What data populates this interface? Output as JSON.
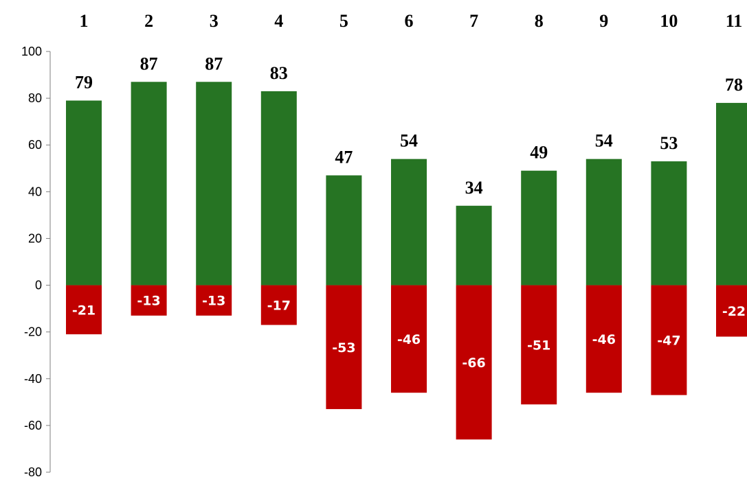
{
  "chart_data": {
    "type": "bar",
    "stacked": true,
    "categories": [
      "1",
      "2",
      "3",
      "4",
      "5",
      "6",
      "7",
      "8",
      "9",
      "10",
      "11"
    ],
    "series": [
      {
        "color": "#267423",
        "values": [
          79,
          87,
          87,
          83,
          47,
          54,
          34,
          49,
          54,
          53,
          78
        ]
      },
      {
        "color": "#c00000",
        "values": [
          -21,
          -13,
          -13,
          -17,
          -53,
          -46,
          -66,
          -51,
          -46,
          -47,
          -22
        ]
      }
    ],
    "ylim": [
      -80,
      100
    ],
    "yticks": [
      100,
      80,
      60,
      40,
      20,
      0,
      -20,
      -40,
      -60,
      -80
    ],
    "category_labels_position": "top",
    "grid": false,
    "legend": "none"
  }
}
